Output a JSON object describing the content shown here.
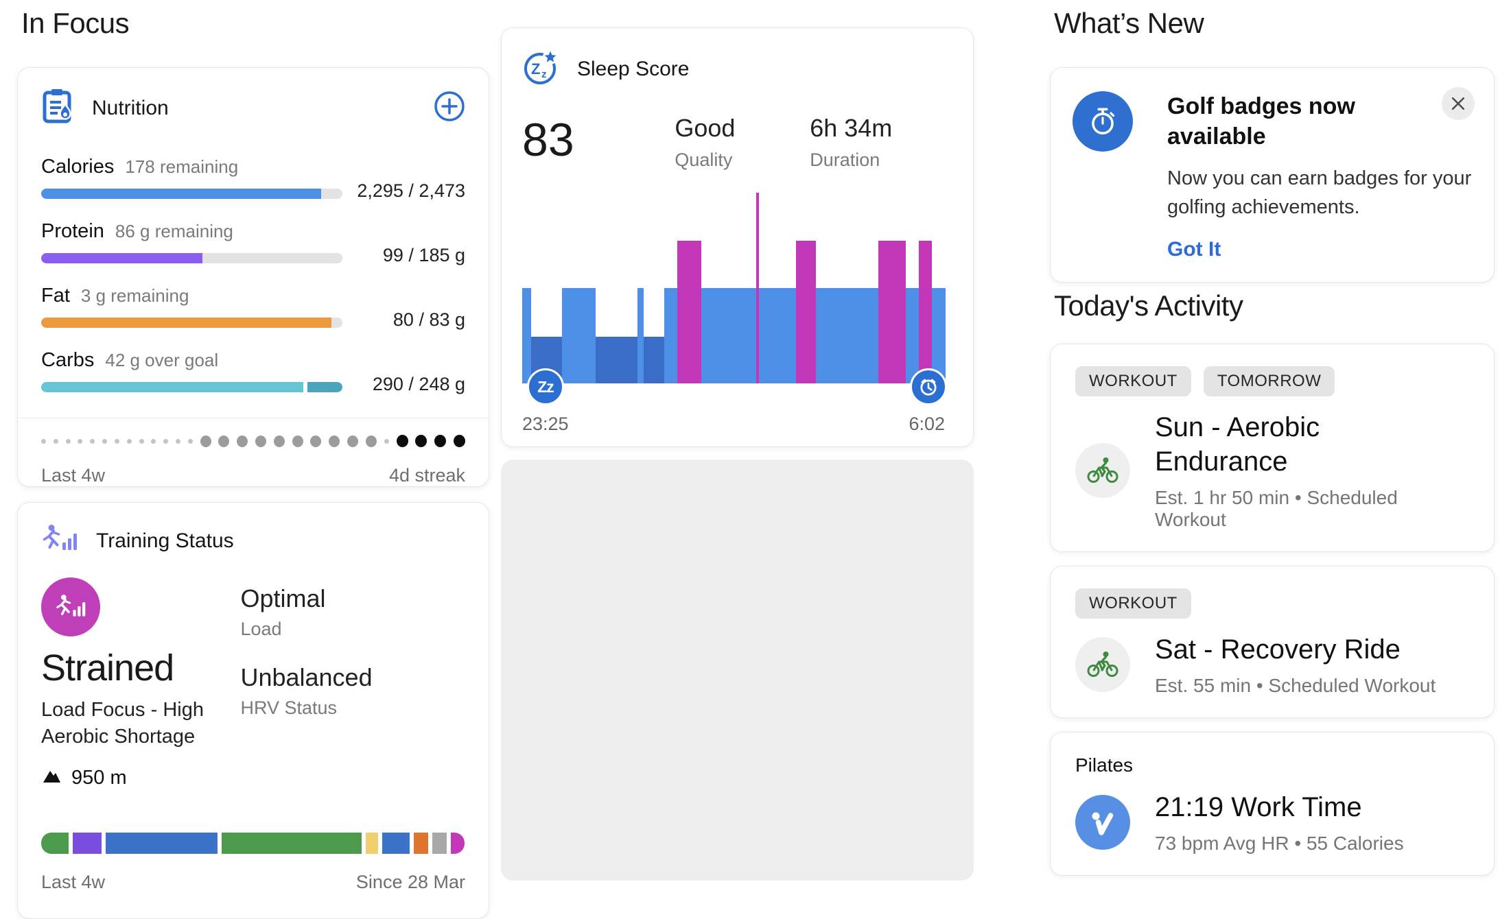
{
  "headings": {
    "in_focus": "In Focus",
    "whats_new": "What’s New",
    "todays_activity": "Today's Activity"
  },
  "nutrition": {
    "title": "Nutrition",
    "rows": [
      {
        "label": "Calories",
        "status": "178 remaining",
        "value": "2,295 / 2,473",
        "pct": 93,
        "color": "#4c90e8"
      },
      {
        "label": "Protein",
        "status": "86 g remaining",
        "value": "99 / 185 g",
        "pct": 53.5,
        "color": "#8a5ff0"
      },
      {
        "label": "Fat",
        "status": "3 g remaining",
        "value": "80 / 83 g",
        "pct": 96.5,
        "color": "#eb9a3d"
      },
      {
        "label": "Carbs",
        "status": "42 g over goal",
        "value": "290 / 248 g",
        "pct": 87,
        "color": "#66c5d5",
        "overflow_pct": 11.5,
        "overflow_color": "#4aa4ba"
      }
    ],
    "streak_pattern": "sssssssssssssmmmmmmmmmmsbbbb",
    "footer_left": "Last 4w",
    "footer_right": "4d streak"
  },
  "sleep": {
    "title": "Sleep Score",
    "score": "83",
    "quality_value": "Good",
    "quality_label": "Quality",
    "duration_value": "6h 34m",
    "duration_label": "Duration",
    "bed_time": "23:25",
    "wake_time": "6:02",
    "zz_badge_text": "Zz",
    "chart_data": {
      "type": "sleep-timeline",
      "x_range": [
        "23:25",
        "6:02"
      ],
      "colors": {
        "light": "#4e90e8",
        "deep": "#3a6dc6",
        "awake": "#c238b8"
      },
      "segments": [
        {
          "type": "light",
          "width_pct": 2.1,
          "height_pct": 50
        },
        {
          "type": "deep",
          "width_pct": 7.3,
          "height_pct": 24.5
        },
        {
          "type": "light",
          "width_pct": 7.9,
          "height_pct": 50
        },
        {
          "type": "deep",
          "width_pct": 9.9,
          "height_pct": 24.5
        },
        {
          "type": "light",
          "width_pct": 1.6,
          "height_pct": 50
        },
        {
          "type": "deep",
          "width_pct": 4.8,
          "height_pct": 24.5
        },
        {
          "type": "light",
          "width_pct": 3.1,
          "height_pct": 50
        },
        {
          "type": "awake",
          "width_pct": 5.7,
          "height_pct": 75
        },
        {
          "type": "light",
          "width_pct": 12.9,
          "height_pct": 50
        },
        {
          "type": "awake",
          "width_pct": 0.5,
          "height_pct": 100
        },
        {
          "type": "light",
          "width_pct": 8.9,
          "height_pct": 50
        },
        {
          "type": "awake",
          "width_pct": 4.7,
          "height_pct": 75
        },
        {
          "type": "light",
          "width_pct": 14.7,
          "height_pct": 50
        },
        {
          "type": "awake",
          "width_pct": 6.5,
          "height_pct": 75
        },
        {
          "type": "light",
          "width_pct": 3.1,
          "height_pct": 50
        },
        {
          "type": "awake",
          "width_pct": 3.1,
          "height_pct": 75
        },
        {
          "type": "light",
          "width_pct": 3.2,
          "height_pct": 50
        }
      ]
    }
  },
  "training": {
    "title": "Training Status",
    "status": "Strained",
    "status_detail": "Load Focus - High Aerobic Shortage",
    "load_value": "Optimal",
    "load_label": "Load",
    "hrv_value": "Unbalanced",
    "hrv_label": "HRV Status",
    "elevation": "950 m",
    "strip_segments": [
      {
        "color": "#4c9b4c",
        "width_pct": 6.5
      },
      {
        "color": "#7a4fe0",
        "width_pct": 6.8
      },
      {
        "color": "#3c72c8",
        "width_pct": 26.3
      },
      {
        "color": "#4c9b4c",
        "width_pct": 33.0
      },
      {
        "color": "#f0cf6e",
        "width_pct": 2.9
      },
      {
        "color": "#3c72c8",
        "width_pct": 6.5
      },
      {
        "color": "#e0752e",
        "width_pct": 3.5
      },
      {
        "color": "#a8a8a8",
        "width_pct": 3.4
      },
      {
        "color": "#c238b8",
        "width_pct": 3.2
      }
    ],
    "footer_left": "Last 4w",
    "footer_right": "Since 28 Mar"
  },
  "whats_new": {
    "title": "Golf badges now available",
    "body": "Now you can earn badges for your golfing achievements.",
    "cta": "Got It"
  },
  "activities": [
    {
      "tags": [
        "WORKOUT",
        "TOMORROW"
      ],
      "title": "Sun - Aerobic Endurance",
      "subtitle": "Est. 1 hr 50 min • Scheduled Workout",
      "icon": "cycling"
    },
    {
      "tags": [
        "WORKOUT"
      ],
      "title": "Sat - Recovery Ride",
      "subtitle": "Est. 55 min • Scheduled Workout",
      "icon": "cycling"
    },
    {
      "label": "Pilates",
      "title": "21:19 Work Time",
      "subtitle": "73 bpm Avg HR • 55 Calories",
      "icon": "pilates-check"
    }
  ]
}
